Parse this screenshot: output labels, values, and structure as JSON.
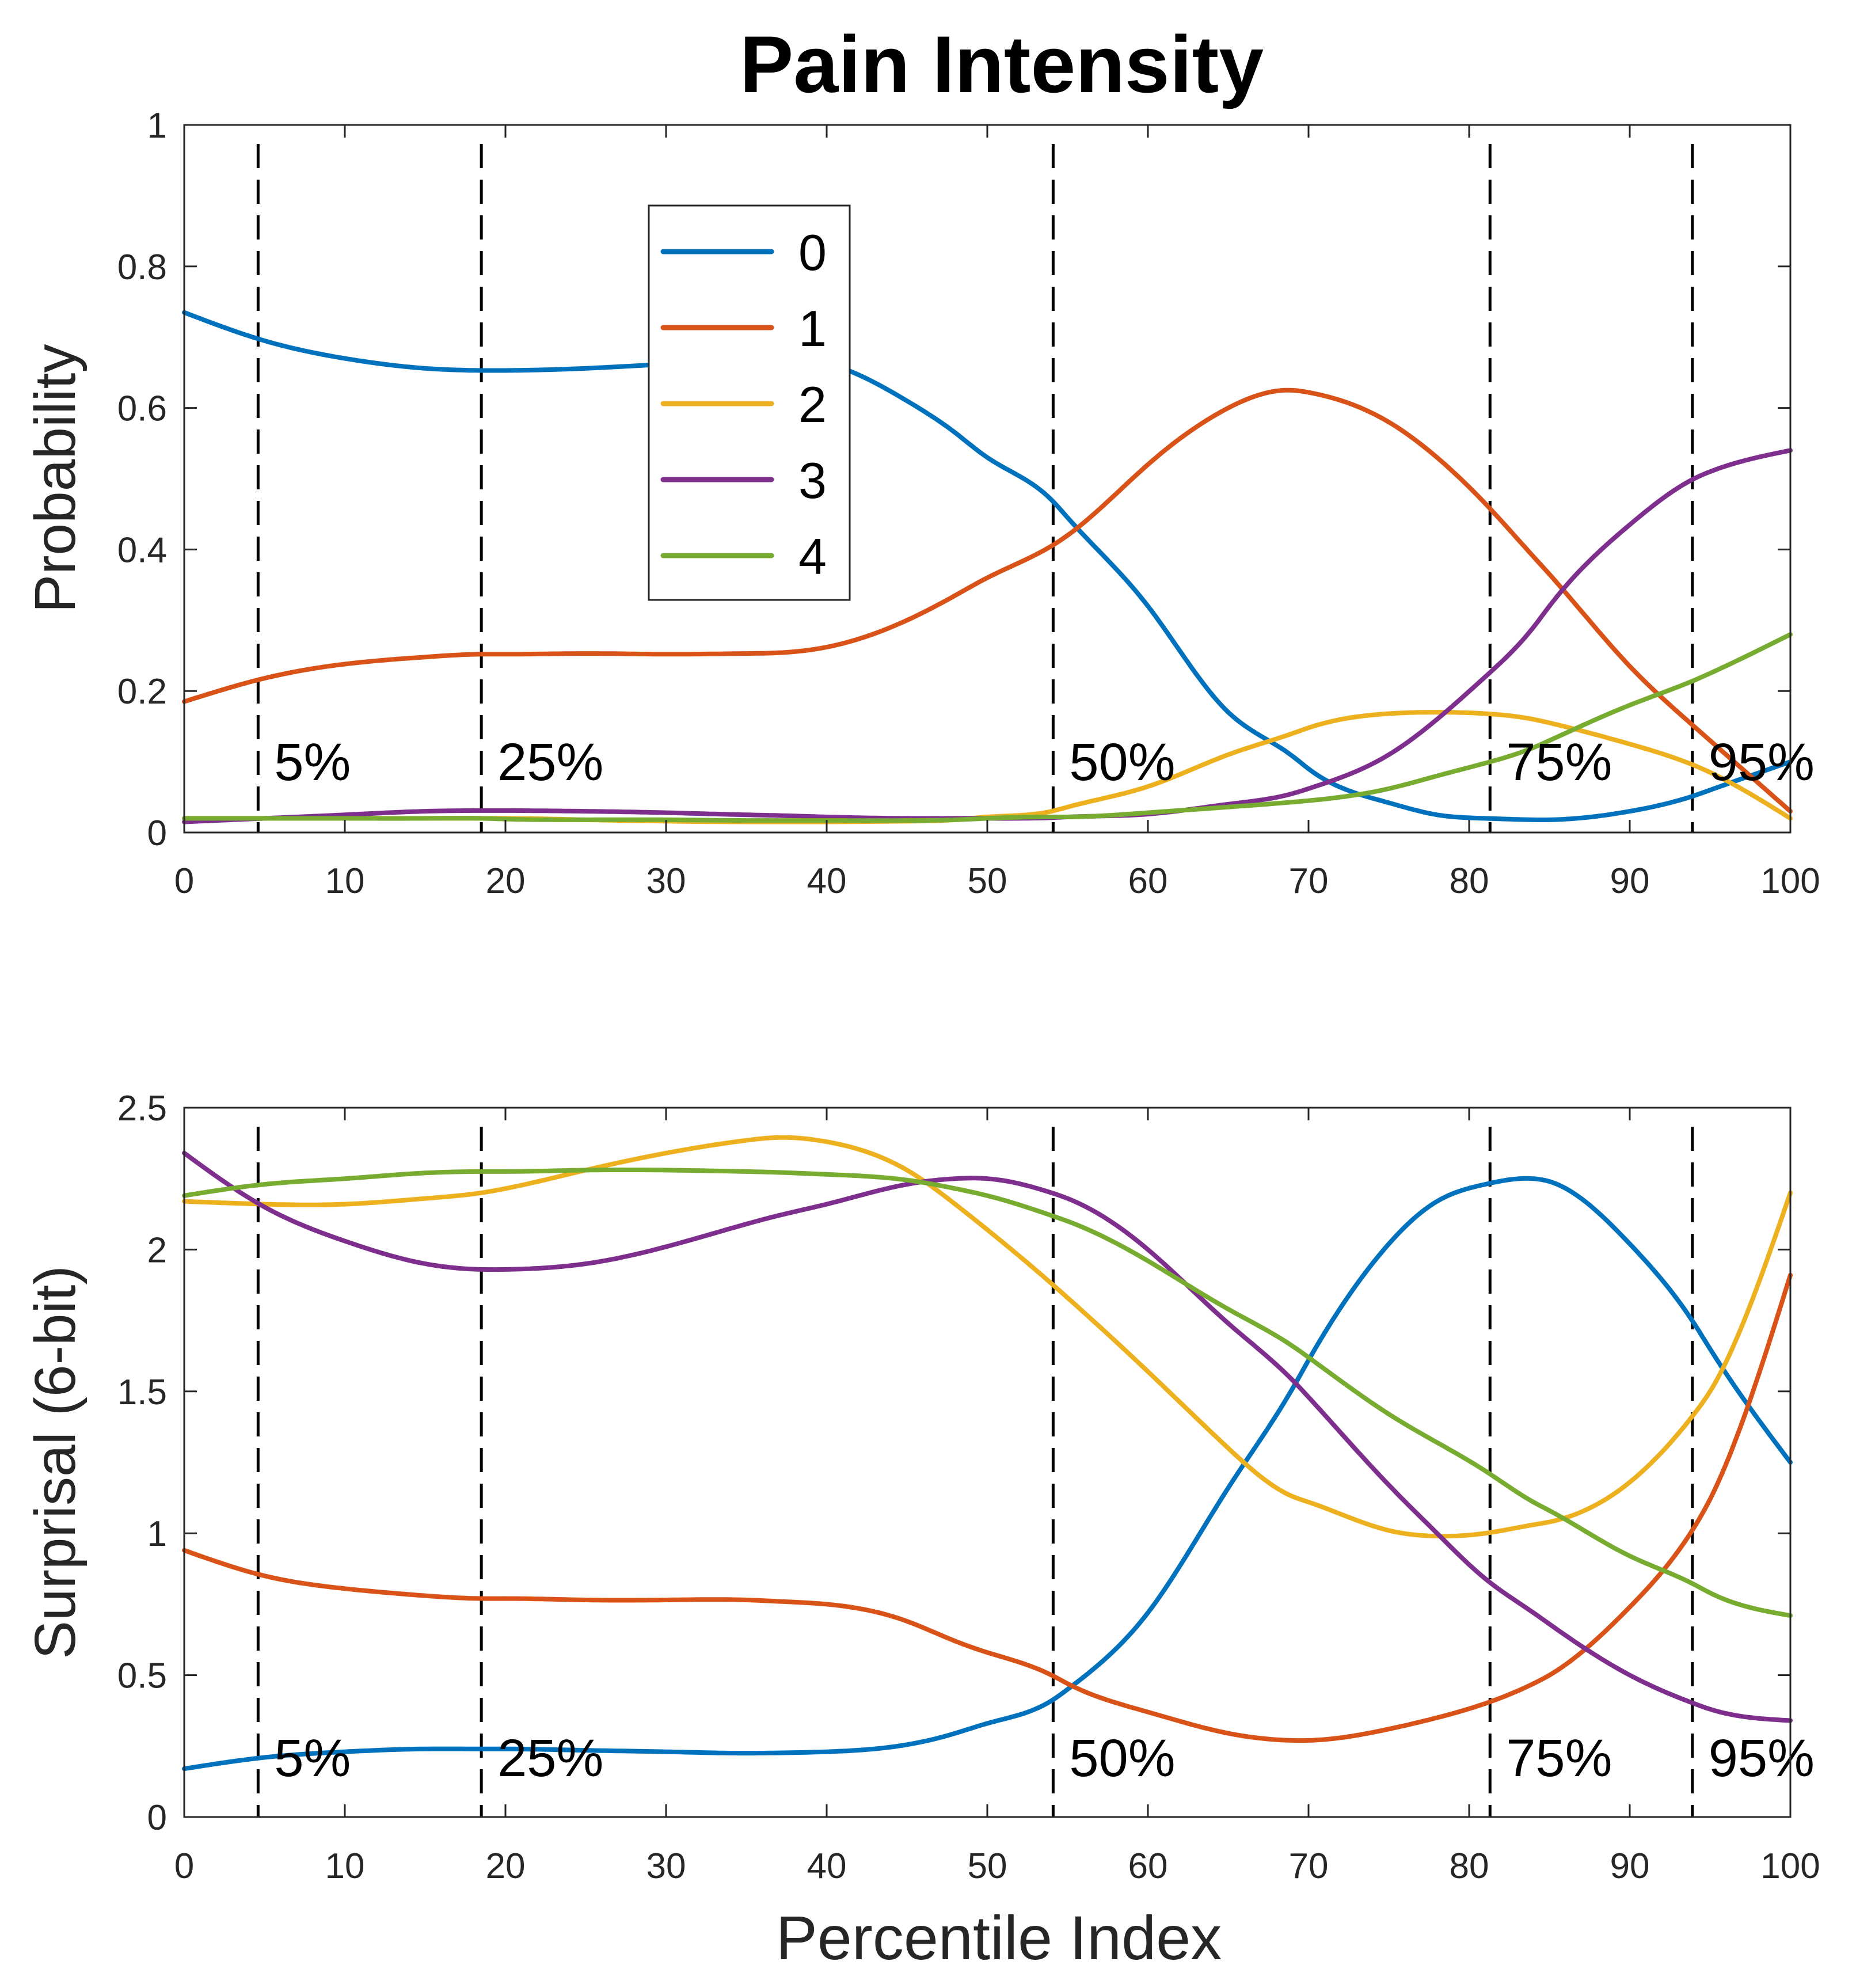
{
  "chart_data": {
    "type": "line",
    "title": "Pain Intensity",
    "xlabel": "Percentile Index",
    "xlim": [
      0,
      100
    ],
    "x_ticks": [
      0,
      10,
      20,
      30,
      40,
      50,
      60,
      70,
      80,
      90,
      100
    ],
    "x_tick_labels": [
      "0",
      "10",
      "20",
      "30",
      "40",
      "50",
      "60",
      "70",
      "80",
      "90",
      "100"
    ],
    "x": [
      0,
      5,
      10,
      15,
      18.5,
      20,
      25,
      30,
      35,
      37,
      40,
      45,
      48,
      50,
      54,
      55,
      60,
      65,
      69,
      70,
      75,
      78,
      81,
      84,
      85,
      90,
      94,
      95,
      100
    ],
    "colors": {
      "s0": "#0072BD",
      "s1": "#D95319",
      "s2": "#EDB120",
      "s3": "#7E2F8E",
      "s4": "#77AC30",
      "vline": "#000000",
      "axis": "#262626"
    },
    "percentile_markers": [
      {
        "x": 4.6,
        "label": "5%"
      },
      {
        "x": 18.5,
        "label": "25%"
      },
      {
        "x": 54.1,
        "label": "50%"
      },
      {
        "x": 81.3,
        "label": "75%"
      },
      {
        "x": 93.9,
        "label": "95%"
      }
    ],
    "legend": {
      "title": "",
      "entries": [
        "0",
        "1",
        "2",
        "3",
        "4"
      ],
      "location": "top-center"
    },
    "panels": [
      {
        "ylabel": "Probability",
        "ylim": [
          0,
          1
        ],
        "y_ticks": [
          0,
          0.2,
          0.4,
          0.6,
          0.8,
          1
        ],
        "y_tick_labels": [
          "0",
          "0.2",
          "0.4",
          "0.6",
          "0.8",
          "1"
        ],
        "series": [
          {
            "name": "0",
            "values": [
              0.735,
              0.695,
              0.67,
              0.656,
              0.653,
              0.653,
              0.656,
              0.662,
              0.668,
              0.67,
              0.663,
              0.61,
              0.565,
              0.53,
              0.47,
              0.445,
              0.32,
              0.17,
              0.108,
              0.09,
              0.042,
              0.025,
              0.02,
              0.018,
              0.018,
              0.03,
              0.052,
              0.06,
              0.1
            ]
          },
          {
            "name": "1",
            "values": [
              0.185,
              0.218,
              0.238,
              0.248,
              0.252,
              0.252,
              0.253,
              0.252,
              0.253,
              0.254,
              0.262,
              0.3,
              0.335,
              0.36,
              0.405,
              0.42,
              0.52,
              0.6,
              0.625,
              0.622,
              0.58,
              0.53,
              0.465,
              0.39,
              0.365,
              0.235,
              0.15,
              0.13,
              0.03
            ]
          },
          {
            "name": "2",
            "values": [
              0.02,
              0.02,
              0.02,
              0.02,
              0.02,
              0.02,
              0.018,
              0.016,
              0.015,
              0.015,
              0.015,
              0.016,
              0.018,
              0.022,
              0.03,
              0.036,
              0.065,
              0.11,
              0.14,
              0.148,
              0.168,
              0.17,
              0.168,
              0.16,
              0.155,
              0.125,
              0.095,
              0.085,
              0.02
            ]
          },
          {
            "name": "3",
            "values": [
              0.015,
              0.02,
              0.025,
              0.03,
              0.031,
              0.031,
              0.03,
              0.028,
              0.025,
              0.024,
              0.022,
              0.02,
              0.02,
              0.02,
              0.021,
              0.022,
              0.026,
              0.04,
              0.055,
              0.062,
              0.11,
              0.16,
              0.22,
              0.29,
              0.32,
              0.435,
              0.5,
              0.51,
              0.54
            ]
          },
          {
            "name": "4",
            "values": [
              0.02,
              0.02,
              0.02,
              0.02,
              0.02,
              0.019,
              0.018,
              0.018,
              0.017,
              0.017,
              0.017,
              0.017,
              0.018,
              0.02,
              0.022,
              0.022,
              0.028,
              0.036,
              0.043,
              0.045,
              0.062,
              0.08,
              0.098,
              0.12,
              0.13,
              0.18,
              0.215,
              0.225,
              0.28
            ]
          }
        ]
      },
      {
        "ylabel": "Surprisal (6-bit)",
        "ylim": [
          0,
          2.5
        ],
        "y_ticks": [
          0,
          0.5,
          1,
          1.5,
          2,
          2.5
        ],
        "y_tick_labels": [
          "0",
          "0.5",
          "1",
          "1.5",
          "2",
          "2.5"
        ],
        "series": [
          {
            "name": "0",
            "values": [
              0.17,
              0.21,
              0.23,
              0.24,
              0.24,
              0.24,
              0.235,
              0.23,
              0.225,
              0.226,
              0.23,
              0.255,
              0.295,
              0.33,
              0.41,
              0.45,
              0.72,
              1.16,
              1.51,
              1.61,
              2.02,
              2.17,
              2.23,
              2.25,
              2.24,
              2.02,
              1.74,
              1.65,
              1.25
            ]
          },
          {
            "name": "1",
            "values": [
              0.94,
              0.85,
              0.805,
              0.78,
              0.77,
              0.77,
              0.765,
              0.765,
              0.765,
              0.76,
              0.75,
              0.69,
              0.62,
              0.58,
              0.5,
              0.47,
              0.37,
              0.295,
              0.27,
              0.27,
              0.31,
              0.35,
              0.4,
              0.47,
              0.5,
              0.74,
              1.02,
              1.12,
              1.91
            ]
          },
          {
            "name": "2",
            "values": [
              2.17,
              2.16,
              2.16,
              2.18,
              2.2,
              2.215,
              2.28,
              2.34,
              2.385,
              2.395,
              2.38,
              2.28,
              2.16,
              2.07,
              1.88,
              1.83,
              1.57,
              1.3,
              1.13,
              1.11,
              1.01,
              0.99,
              1.0,
              1.03,
              1.04,
              1.18,
              1.42,
              1.5,
              2.2
            ]
          },
          {
            "name": "3",
            "values": [
              2.34,
              2.15,
              2.03,
              1.95,
              1.93,
              1.93,
              1.95,
              2.01,
              2.09,
              2.12,
              2.16,
              2.23,
              2.25,
              2.25,
              2.2,
              2.18,
              2.0,
              1.74,
              1.54,
              1.48,
              1.17,
              1.0,
              0.84,
              0.72,
              0.68,
              0.5,
              0.4,
              0.38,
              0.34
            ]
          },
          {
            "name": "4",
            "values": [
              2.19,
              2.23,
              2.25,
              2.27,
              2.275,
              2.275,
              2.28,
              2.28,
              2.275,
              2.272,
              2.265,
              2.245,
              2.215,
              2.19,
              2.12,
              2.1,
              1.96,
              1.79,
              1.66,
              1.62,
              1.42,
              1.32,
              1.22,
              1.11,
              1.08,
              0.92,
              0.82,
              0.79,
              0.71
            ]
          }
        ]
      }
    ]
  }
}
